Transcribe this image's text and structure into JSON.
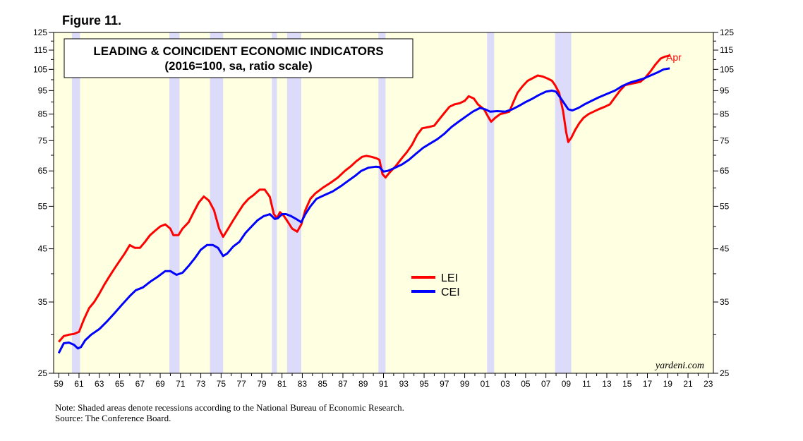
{
  "figure_label": "Figure 11.",
  "footnotes": {
    "note": "Note: Shaded areas denote recessions according to the National Bureau of Economic Research.",
    "source": "Source: The Conference Board."
  },
  "chart_data": {
    "type": "line",
    "title": "LEADING & COINCIDENT ECONOMIC INDICATORS",
    "subtitle": "(2016=100, sa, ratio scale)",
    "scale": "log",
    "xlim": [
      1958.5,
      2023.5
    ],
    "ylim": [
      25,
      125
    ],
    "x_tick_labels": [
      "59",
      "61",
      "63",
      "65",
      "67",
      "69",
      "71",
      "73",
      "75",
      "77",
      "79",
      "81",
      "83",
      "85",
      "87",
      "89",
      "91",
      "93",
      "95",
      "97",
      "99",
      "01",
      "03",
      "05",
      "07",
      "09",
      "11",
      "13",
      "15",
      "17",
      "19",
      "21",
      "23"
    ],
    "x_tick_years": [
      1959,
      1961,
      1963,
      1965,
      1967,
      1969,
      1971,
      1973,
      1975,
      1977,
      1979,
      1981,
      1983,
      1985,
      1987,
      1989,
      1991,
      1993,
      1995,
      1997,
      1999,
      2001,
      2003,
      2005,
      2007,
      2009,
      2011,
      2013,
      2015,
      2017,
      2019,
      2021,
      2023
    ],
    "y_ticks": [
      25,
      35,
      45,
      55,
      65,
      75,
      85,
      95,
      105,
      115,
      125
    ],
    "y_minor_ticks": [
      30,
      40,
      50,
      60,
      70,
      80,
      90,
      100,
      110,
      120
    ],
    "grid": false,
    "recessions": [
      [
        1960.3,
        1961.1
      ],
      [
        1969.9,
        1970.9
      ],
      [
        1973.9,
        1975.2
      ],
      [
        1980.0,
        1980.5
      ],
      [
        1981.5,
        1982.9
      ],
      [
        1990.5,
        1991.2
      ],
      [
        2001.2,
        2001.9
      ],
      [
        2007.9,
        2009.5
      ]
    ],
    "legend": {
      "position": "center-right",
      "entries": [
        "LEI",
        "CEI"
      ]
    },
    "annotations": {
      "last_point_label": "Apr",
      "watermark": "yardeni.com"
    },
    "colors": {
      "lei": "#ff0000",
      "cei": "#0000ff",
      "background": "#ffffe1",
      "recession": "#dcdcfa"
    },
    "series": [
      {
        "name": "LEI",
        "color": "#ff0000",
        "points": [
          [
            1959.0,
            29.0
          ],
          [
            1959.5,
            29.8
          ],
          [
            1960.0,
            30.0
          ],
          [
            1960.5,
            30.1
          ],
          [
            1961.0,
            30.4
          ],
          [
            1961.5,
            32.3
          ],
          [
            1962.0,
            34.0
          ],
          [
            1962.5,
            35.0
          ],
          [
            1963.0,
            36.4
          ],
          [
            1963.5,
            38.0
          ],
          [
            1964.0,
            39.5
          ],
          [
            1964.5,
            41.0
          ],
          [
            1965.0,
            42.5
          ],
          [
            1965.5,
            44.0
          ],
          [
            1966.0,
            45.8
          ],
          [
            1966.5,
            45.2
          ],
          [
            1967.0,
            45.2
          ],
          [
            1967.5,
            46.5
          ],
          [
            1968.0,
            48.0
          ],
          [
            1968.5,
            49.0
          ],
          [
            1969.0,
            50.0
          ],
          [
            1969.5,
            50.5
          ],
          [
            1970.0,
            49.5
          ],
          [
            1970.3,
            48.0
          ],
          [
            1970.8,
            48.0
          ],
          [
            1971.2,
            49.5
          ],
          [
            1971.8,
            51.0
          ],
          [
            1972.3,
            53.5
          ],
          [
            1972.8,
            56.0
          ],
          [
            1973.3,
            57.6
          ],
          [
            1973.8,
            56.5
          ],
          [
            1974.3,
            54.0
          ],
          [
            1974.8,
            49.5
          ],
          [
            1975.2,
            47.6
          ],
          [
            1975.7,
            49.5
          ],
          [
            1976.2,
            51.5
          ],
          [
            1976.7,
            53.5
          ],
          [
            1977.2,
            55.5
          ],
          [
            1977.7,
            57.0
          ],
          [
            1978.2,
            58.0
          ],
          [
            1978.8,
            59.5
          ],
          [
            1979.3,
            59.5
          ],
          [
            1979.8,
            57.5
          ],
          [
            1980.2,
            53.0
          ],
          [
            1980.5,
            52.0
          ],
          [
            1980.8,
            53.5
          ],
          [
            1981.2,
            52.5
          ],
          [
            1981.6,
            51.0
          ],
          [
            1982.0,
            49.5
          ],
          [
            1982.5,
            48.8
          ],
          [
            1982.9,
            50.5
          ],
          [
            1983.3,
            54.0
          ],
          [
            1983.8,
            57.0
          ],
          [
            1984.3,
            58.5
          ],
          [
            1985.0,
            60.0
          ],
          [
            1985.8,
            61.5
          ],
          [
            1986.5,
            63.0
          ],
          [
            1987.2,
            65.0
          ],
          [
            1987.8,
            66.5
          ],
          [
            1988.3,
            68.0
          ],
          [
            1988.9,
            69.5
          ],
          [
            1989.3,
            69.8
          ],
          [
            1989.8,
            69.5
          ],
          [
            1990.3,
            69.0
          ],
          [
            1990.6,
            68.5
          ],
          [
            1990.9,
            64.0
          ],
          [
            1991.2,
            63.0
          ],
          [
            1991.6,
            64.5
          ],
          [
            1992.2,
            66.5
          ],
          [
            1992.8,
            69.0
          ],
          [
            1993.3,
            71.0
          ],
          [
            1993.8,
            73.5
          ],
          [
            1994.3,
            77.0
          ],
          [
            1994.8,
            79.5
          ],
          [
            1995.5,
            80.0
          ],
          [
            1996.0,
            80.5
          ],
          [
            1996.5,
            83.0
          ],
          [
            1997.0,
            85.5
          ],
          [
            1997.5,
            88.0
          ],
          [
            1998.0,
            89.0
          ],
          [
            1998.5,
            89.5
          ],
          [
            1999.0,
            90.5
          ],
          [
            1999.4,
            92.5
          ],
          [
            1999.9,
            91.5
          ],
          [
            2000.3,
            89.0
          ],
          [
            2000.9,
            87.0
          ],
          [
            2001.3,
            84.0
          ],
          [
            2001.6,
            82.0
          ],
          [
            2002.0,
            83.5
          ],
          [
            2002.5,
            85.0
          ],
          [
            2003.0,
            85.5
          ],
          [
            2003.4,
            86.0
          ],
          [
            2003.8,
            90.0
          ],
          [
            2004.2,
            94.0
          ],
          [
            2004.7,
            97.0
          ],
          [
            2005.2,
            99.5
          ],
          [
            2005.8,
            101.0
          ],
          [
            2006.2,
            102.0
          ],
          [
            2006.7,
            101.5
          ],
          [
            2007.2,
            100.5
          ],
          [
            2007.6,
            99.5
          ],
          [
            2007.9,
            97.5
          ],
          [
            2008.3,
            94.0
          ],
          [
            2008.7,
            86.0
          ],
          [
            2009.0,
            78.0
          ],
          [
            2009.2,
            74.5
          ],
          [
            2009.5,
            76.0
          ],
          [
            2009.9,
            79.0
          ],
          [
            2010.3,
            81.5
          ],
          [
            2010.7,
            83.5
          ],
          [
            2011.2,
            85.0
          ],
          [
            2011.7,
            86.0
          ],
          [
            2012.2,
            87.0
          ],
          [
            2012.8,
            88.0
          ],
          [
            2013.3,
            89.0
          ],
          [
            2013.8,
            92.0
          ],
          [
            2014.3,
            95.0
          ],
          [
            2014.8,
            97.5
          ],
          [
            2015.3,
            98.0
          ],
          [
            2015.8,
            98.5
          ],
          [
            2016.3,
            99.0
          ],
          [
            2016.8,
            101.0
          ],
          [
            2017.3,
            104.0
          ],
          [
            2017.8,
            107.5
          ],
          [
            2018.3,
            110.5
          ],
          [
            2018.7,
            111.5
          ],
          [
            2019.2,
            112.0
          ]
        ]
      },
      {
        "name": "CEI",
        "color": "#0000ff",
        "points": [
          [
            1959.0,
            27.5
          ],
          [
            1959.5,
            28.8
          ],
          [
            1960.0,
            28.9
          ],
          [
            1960.5,
            28.6
          ],
          [
            1960.9,
            28.1
          ],
          [
            1961.2,
            28.3
          ],
          [
            1961.6,
            29.2
          ],
          [
            1962.2,
            30.0
          ],
          [
            1963.0,
            30.8
          ],
          [
            1963.8,
            32.0
          ],
          [
            1964.5,
            33.2
          ],
          [
            1965.2,
            34.5
          ],
          [
            1966.0,
            36.0
          ],
          [
            1966.6,
            37.0
          ],
          [
            1967.3,
            37.5
          ],
          [
            1968.0,
            38.5
          ],
          [
            1968.8,
            39.5
          ],
          [
            1969.5,
            40.5
          ],
          [
            1970.0,
            40.5
          ],
          [
            1970.6,
            39.8
          ],
          [
            1971.2,
            40.2
          ],
          [
            1971.8,
            41.5
          ],
          [
            1972.4,
            43.0
          ],
          [
            1973.0,
            44.8
          ],
          [
            1973.6,
            45.8
          ],
          [
            1974.2,
            45.8
          ],
          [
            1974.7,
            45.2
          ],
          [
            1975.2,
            43.5
          ],
          [
            1975.6,
            44.0
          ],
          [
            1976.2,
            45.5
          ],
          [
            1976.8,
            46.5
          ],
          [
            1977.4,
            48.5
          ],
          [
            1978.0,
            50.0
          ],
          [
            1978.6,
            51.5
          ],
          [
            1979.2,
            52.5
          ],
          [
            1979.8,
            53.0
          ],
          [
            1980.3,
            51.8
          ],
          [
            1980.6,
            52.0
          ],
          [
            1981.0,
            53.0
          ],
          [
            1981.4,
            53.0
          ],
          [
            1981.9,
            52.5
          ],
          [
            1982.4,
            51.8
          ],
          [
            1982.9,
            51.0
          ],
          [
            1983.3,
            53.0
          ],
          [
            1983.8,
            55.0
          ],
          [
            1984.4,
            57.0
          ],
          [
            1985.2,
            58.0
          ],
          [
            1986.0,
            59.0
          ],
          [
            1986.8,
            60.5
          ],
          [
            1987.5,
            62.0
          ],
          [
            1988.2,
            63.5
          ],
          [
            1988.8,
            65.0
          ],
          [
            1989.5,
            66.0
          ],
          [
            1990.2,
            66.3
          ],
          [
            1990.6,
            66.2
          ],
          [
            1991.0,
            64.8
          ],
          [
            1991.4,
            65.0
          ],
          [
            1992.0,
            65.8
          ],
          [
            1992.8,
            67.0
          ],
          [
            1993.5,
            68.5
          ],
          [
            1994.2,
            70.5
          ],
          [
            1994.9,
            72.5
          ],
          [
            1995.6,
            74.0
          ],
          [
            1996.3,
            75.5
          ],
          [
            1997.0,
            77.5
          ],
          [
            1997.7,
            80.0
          ],
          [
            1998.4,
            82.0
          ],
          [
            1999.1,
            84.0
          ],
          [
            1999.8,
            86.0
          ],
          [
            2000.5,
            87.5
          ],
          [
            2001.0,
            87.0
          ],
          [
            2001.5,
            86.0
          ],
          [
            2002.2,
            86.2
          ],
          [
            2003.0,
            86.0
          ],
          [
            2003.7,
            87.0
          ],
          [
            2004.4,
            88.5
          ],
          [
            2005.0,
            90.0
          ],
          [
            2005.7,
            91.5
          ],
          [
            2006.3,
            93.0
          ],
          [
            2007.0,
            94.5
          ],
          [
            2007.6,
            95.0
          ],
          [
            2008.0,
            94.5
          ],
          [
            2008.4,
            92.0
          ],
          [
            2008.8,
            89.5
          ],
          [
            2009.2,
            87.0
          ],
          [
            2009.6,
            86.5
          ],
          [
            2010.2,
            87.5
          ],
          [
            2010.8,
            89.0
          ],
          [
            2011.5,
            90.5
          ],
          [
            2012.2,
            92.0
          ],
          [
            2013.0,
            93.5
          ],
          [
            2013.8,
            95.0
          ],
          [
            2014.5,
            97.0
          ],
          [
            2015.2,
            98.5
          ],
          [
            2015.9,
            99.5
          ],
          [
            2016.6,
            100.5
          ],
          [
            2017.3,
            102.0
          ],
          [
            2018.0,
            103.5
          ],
          [
            2018.6,
            105.0
          ],
          [
            2019.2,
            105.5
          ]
        ]
      }
    ]
  }
}
